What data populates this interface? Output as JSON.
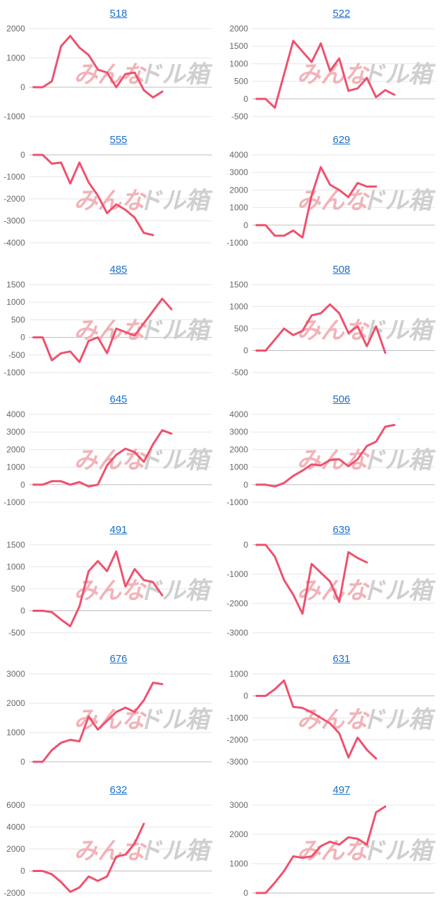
{
  "colors": {
    "line": "#f0506e",
    "grid": "#e6e6e6",
    "zero": "#bdbdbd",
    "title": "#1a6fc9"
  },
  "watermark": {
    "part1": "みんな",
    "part2": "ドル箱"
  },
  "chart_data": [
    {
      "type": "line",
      "title": "518",
      "yticks": [
        2000,
        1000,
        0,
        -1000
      ],
      "ylim": [
        -1000,
        2000
      ],
      "values": [
        0,
        0,
        200,
        1400,
        1750,
        1350,
        1100,
        600,
        500,
        0,
        450,
        500,
        -100,
        -350,
        -150
      ]
    },
    {
      "type": "line",
      "title": "522",
      "yticks": [
        2000,
        1500,
        1000,
        500,
        0,
        -500
      ],
      "ylim": [
        -500,
        2000
      ],
      "values": [
        0,
        0,
        -250,
        700,
        1650,
        1350,
        1050,
        1580,
        800,
        1150,
        230,
        300,
        600,
        50,
        250,
        120
      ]
    },
    {
      "type": "line",
      "title": "555",
      "yticks": [
        0,
        -1000,
        -2000,
        -3000,
        -4000
      ],
      "ylim": [
        -4000,
        0
      ],
      "values": [
        0,
        0,
        -400,
        -350,
        -1300,
        -350,
        -1250,
        -1850,
        -2650,
        -2250,
        -2500,
        -2850,
        -3550,
        -3650
      ]
    },
    {
      "type": "line",
      "title": "629",
      "yticks": [
        4000,
        3000,
        2000,
        1000,
        0,
        -1000
      ],
      "ylim": [
        -1000,
        4000
      ],
      "values": [
        0,
        0,
        -600,
        -600,
        -300,
        -700,
        1700,
        3300,
        2300,
        2000,
        1600,
        2400,
        2200,
        2200
      ]
    },
    {
      "type": "line",
      "title": "485",
      "yticks": [
        1500,
        1000,
        500,
        0,
        -500,
        -1000
      ],
      "ylim": [
        -1000,
        1500
      ],
      "values": [
        0,
        0,
        -650,
        -450,
        -400,
        -700,
        -100,
        0,
        -450,
        250,
        150,
        50,
        400,
        750,
        1100,
        800
      ]
    },
    {
      "type": "line",
      "title": "508",
      "yticks": [
        1500,
        1000,
        500,
        0,
        -500
      ],
      "ylim": [
        -500,
        1500
      ],
      "values": [
        0,
        0,
        250,
        500,
        350,
        450,
        800,
        850,
        1050,
        850,
        400,
        550,
        100,
        550,
        -50
      ]
    },
    {
      "type": "line",
      "title": "645",
      "yticks": [
        4000,
        3000,
        2000,
        1000,
        0,
        -1000
      ],
      "ylim": [
        -1000,
        4000
      ],
      "values": [
        0,
        0,
        200,
        200,
        0,
        150,
        -100,
        0,
        1100,
        1700,
        2050,
        1850,
        1300,
        2300,
        3100,
        2900
      ]
    },
    {
      "type": "line",
      "title": "506",
      "yticks": [
        4000,
        3000,
        2000,
        1000,
        0,
        -1000
      ],
      "ylim": [
        -1000,
        4000
      ],
      "values": [
        0,
        0,
        -100,
        100,
        500,
        800,
        1150,
        1100,
        1400,
        1450,
        1050,
        1450,
        2200,
        2450,
        3300,
        3400
      ]
    },
    {
      "type": "line",
      "title": "491",
      "yticks": [
        1500,
        1000,
        500,
        0,
        -500
      ],
      "ylim": [
        -500,
        1500
      ],
      "values": [
        0,
        0,
        -30,
        -200,
        -350,
        100,
        900,
        1130,
        900,
        1350,
        550,
        950,
        700,
        650,
        350
      ]
    },
    {
      "type": "line",
      "title": "639",
      "yticks": [
        0,
        -1000,
        -2000,
        -3000
      ],
      "ylim": [
        -3000,
        0
      ],
      "values": [
        0,
        0,
        -400,
        -1200,
        -1700,
        -2350,
        -650,
        -950,
        -1250,
        -1950,
        -250,
        -450,
        -600
      ]
    },
    {
      "type": "line",
      "title": "676",
      "yticks": [
        3000,
        2000,
        1000,
        0
      ],
      "ylim": [
        0,
        3000
      ],
      "values": [
        0,
        0,
        400,
        650,
        750,
        700,
        1550,
        1100,
        1400,
        1700,
        1850,
        1700,
        2100,
        2700,
        2650
      ]
    },
    {
      "type": "line",
      "title": "631",
      "yticks": [
        1000,
        0,
        -1000,
        -2000,
        -3000
      ],
      "ylim": [
        -3000,
        1000
      ],
      "values": [
        0,
        0,
        300,
        700,
        -500,
        -550,
        -750,
        -1000,
        -1250,
        -1700,
        -2800,
        -1900,
        -2450,
        -2850
      ]
    },
    {
      "type": "line",
      "title": "632",
      "yticks": [
        6000,
        4000,
        2000,
        0,
        -2000
      ],
      "ylim": [
        -2000,
        6000
      ],
      "values": [
        0,
        0,
        -300,
        -1000,
        -1900,
        -1500,
        -500,
        -900,
        -500,
        1300,
        1500,
        2500,
        4300
      ]
    },
    {
      "type": "line",
      "title": "497",
      "yticks": [
        3000,
        2000,
        1000,
        0
      ],
      "ylim": [
        0,
        3000
      ],
      "values": [
        0,
        0,
        350,
        750,
        1250,
        1200,
        1250,
        1600,
        1750,
        1650,
        1900,
        1850,
        1650,
        2750,
        2950
      ]
    }
  ]
}
